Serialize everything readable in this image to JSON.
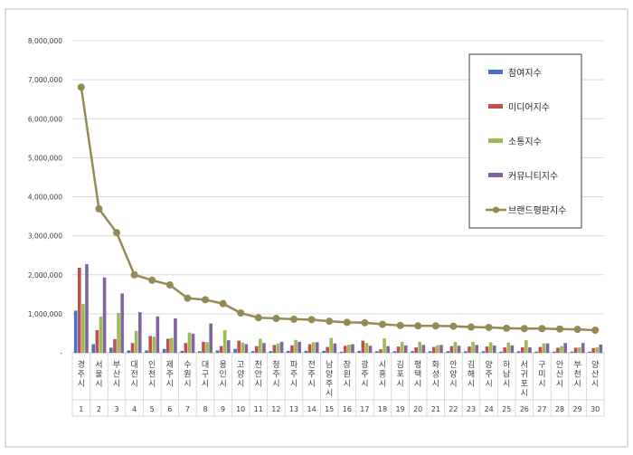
{
  "chart_data": {
    "type": "bar",
    "title": "",
    "xlabel": "",
    "ylabel": "",
    "ylim": [
      0,
      8000000
    ],
    "yticks": [
      0,
      1000000,
      2000000,
      3000000,
      4000000,
      5000000,
      6000000,
      7000000,
      8000000
    ],
    "ytick_labels": [
      "-",
      "1,000,000",
      "2,000,000",
      "3,000,000",
      "4,000,000",
      "5,000,000",
      "6,000,000",
      "7,000,000",
      "8,000,000"
    ],
    "grid": true,
    "legend_position": "top-right",
    "ranks": [
      "1",
      "2",
      "3",
      "4",
      "5",
      "6",
      "7",
      "8",
      "9",
      "10",
      "11",
      "12",
      "13",
      "14",
      "15",
      "16",
      "17",
      "18",
      "19",
      "20",
      "21",
      "22",
      "23",
      "24",
      "25",
      "26",
      "27",
      "28",
      "29",
      "30"
    ],
    "categories": [
      "경주시",
      "서울시",
      "부산시",
      "대전시",
      "인천시",
      "제주시",
      "수원시",
      "대구시",
      "용인시",
      "고양시",
      "천안시",
      "청주시",
      "파주시",
      "전주시",
      "남양주시",
      "창원시",
      "광주시",
      "시흥시",
      "김포시",
      "평택시",
      "화성시",
      "안양시",
      "김해시",
      "양주시",
      "하남시",
      "서귀포시",
      "구미시",
      "안산시",
      "부천시",
      "양산시"
    ],
    "series": [
      {
        "name": "참여지수",
        "color": "#4472c4",
        "kind": "bar",
        "values": [
          1080000,
          220000,
          130000,
          60000,
          60000,
          100000,
          50000,
          40000,
          60000,
          100000,
          40000,
          40000,
          50000,
          50000,
          50000,
          30000,
          50000,
          40000,
          40000,
          40000,
          40000,
          40000,
          40000,
          40000,
          30000,
          40000,
          30000,
          30000,
          30000,
          30000
        ]
      },
      {
        "name": "미디어지수",
        "color": "#c0504d",
        "kind": "bar",
        "values": [
          2180000,
          580000,
          350000,
          250000,
          430000,
          360000,
          250000,
          280000,
          170000,
          310000,
          170000,
          200000,
          190000,
          220000,
          150000,
          180000,
          310000,
          90000,
          160000,
          140000,
          150000,
          170000,
          160000,
          160000,
          140000,
          140000,
          150000,
          130000,
          130000,
          120000
        ]
      },
      {
        "name": "소통지수",
        "color": "#9bbb59",
        "kind": "bar",
        "values": [
          1250000,
          930000,
          1020000,
          560000,
          410000,
          380000,
          520000,
          270000,
          580000,
          260000,
          360000,
          240000,
          330000,
          270000,
          380000,
          210000,
          250000,
          370000,
          280000,
          280000,
          190000,
          280000,
          280000,
          270000,
          260000,
          320000,
          240000,
          170000,
          140000,
          140000
        ]
      },
      {
        "name": "커뮤니티지수",
        "color": "#8064a2",
        "kind": "bar",
        "values": [
          2270000,
          1930000,
          1520000,
          1040000,
          930000,
          880000,
          490000,
          750000,
          320000,
          220000,
          250000,
          280000,
          280000,
          270000,
          240000,
          220000,
          180000,
          170000,
          190000,
          200000,
          200000,
          180000,
          200000,
          190000,
          190000,
          140000,
          240000,
          250000,
          250000,
          210000
        ]
      },
      {
        "name": "브랜드평판지수",
        "color": "#948a54",
        "kind": "line",
        "values": [
          6810000,
          3690000,
          3080000,
          2000000,
          1860000,
          1740000,
          1400000,
          1360000,
          1260000,
          1020000,
          900000,
          880000,
          860000,
          850000,
          810000,
          780000,
          770000,
          730000,
          700000,
          690000,
          690000,
          680000,
          660000,
          650000,
          630000,
          620000,
          620000,
          610000,
          600000,
          580000
        ]
      }
    ]
  }
}
